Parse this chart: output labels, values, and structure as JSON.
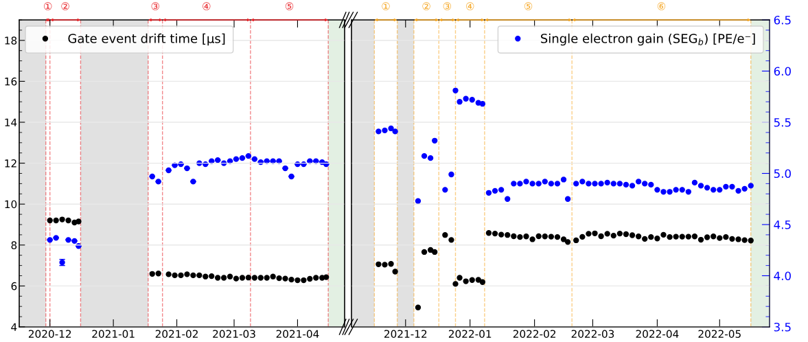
{
  "chart_data": [
    {
      "type": "scatter",
      "marker": "circle",
      "grid": "y",
      "legend": "top left",
      "tick_labels": "x,y",
      "xlim": [
        "2020-11-16",
        "2021-04-24"
      ],
      "xticks": [
        {
          "value": "2020-12-01",
          "label": "2020-12"
        },
        {
          "value": "2021-01-01",
          "label": "2021-01"
        },
        {
          "value": "2021-02-01",
          "label": "2021-02"
        },
        {
          "value": "2021-03-01",
          "label": "2021-03"
        },
        {
          "value": "2021-04-01",
          "label": "2021-04"
        }
      ],
      "ylim": [
        4,
        19
      ],
      "yticks": [
        4,
        6,
        8,
        10,
        12,
        14,
        16,
        18
      ],
      "y2lim": [
        3.5,
        6.5
      ],
      "x": [
        "2020-12-01",
        "2020-12-04",
        "2020-12-07",
        "2020-12-10",
        "2020-12-13",
        "2020-12-15",
        "2021-01-20",
        "2021-01-23",
        "2021-01-28",
        "2021-01-31",
        "2021-02-03",
        "2021-02-06",
        "2021-02-09",
        "2021-02-12",
        "2021-02-15",
        "2021-02-18",
        "2021-02-21",
        "2021-02-24",
        "2021-02-27",
        "2021-03-02",
        "2021-03-05",
        "2021-03-08",
        "2021-03-11",
        "2021-03-14",
        "2021-03-17",
        "2021-03-20",
        "2021-03-23",
        "2021-03-26",
        "2021-03-29",
        "2021-04-01",
        "2021-04-04",
        "2021-04-07",
        "2021-04-10",
        "2021-04-13",
        "2021-04-15"
      ],
      "series": [
        {
          "name": "Gate event drift time [μs]",
          "color": "#000000",
          "values": [
            9.2,
            9.2,
            9.25,
            9.2,
            9.1,
            9.15,
            6.59,
            6.61,
            6.57,
            6.52,
            6.52,
            6.57,
            6.52,
            6.52,
            6.46,
            6.48,
            6.4,
            6.4,
            6.46,
            6.36,
            6.4,
            6.41,
            6.4,
            6.4,
            6.4,
            6.46,
            6.38,
            6.36,
            6.31,
            6.28,
            6.28,
            6.35,
            6.4,
            6.4,
            6.43
          ]
        },
        {
          "color": "#0000ff",
          "axis": "y2",
          "values": [
            4.35,
            4.37,
            4.13,
            4.35,
            4.34,
            4.29,
            4.97,
            4.92,
            5.03,
            5.08,
            5.09,
            5.05,
            4.92,
            5.1,
            5.09,
            5.12,
            5.13,
            5.1,
            5.12,
            5.14,
            5.15,
            5.17,
            5.14,
            5.11,
            5.12,
            5.12,
            5.12,
            5.05,
            4.97,
            5.09,
            5.09,
            5.12,
            5.12,
            5.11,
            5.09
          ],
          "errors": [
            null,
            null,
            0.03,
            null,
            null,
            null,
            null,
            null,
            null,
            null,
            null,
            null,
            null,
            null,
            null,
            null,
            null,
            null,
            null,
            null,
            null,
            null,
            null,
            null,
            null,
            null,
            null,
            null,
            null,
            null,
            null,
            null,
            null,
            null,
            null
          ]
        }
      ],
      "bands": [
        {
          "axis": "x",
          "from": "2020-11-16",
          "to": "2020-11-29",
          "color": "#e1e1e1"
        },
        {
          "axis": "x",
          "from": "2020-12-16",
          "to": "2021-01-18",
          "color": "#e1e1e1"
        },
        {
          "axis": "x",
          "from": "2021-04-16",
          "to": "2021-04-24",
          "color": "#e3f0e3"
        }
      ],
      "ref_lines": [
        {
          "axis": "x",
          "value": "2020-11-29",
          "color": "#e8262b",
          "line_style": "dashed"
        },
        {
          "axis": "x",
          "value": "2020-12-01",
          "color": "#e8262b",
          "line_style": "dashed"
        },
        {
          "axis": "x",
          "value": "2020-12-16",
          "color": "#e8262b",
          "line_style": "dashed"
        },
        {
          "axis": "x",
          "value": "2021-01-18",
          "color": "#e8262b",
          "line_style": "dashed"
        },
        {
          "axis": "x",
          "value": "2021-01-25",
          "color": "#e8262b",
          "line_style": "dashed"
        },
        {
          "axis": "x",
          "value": "2021-03-09",
          "color": "#e8262b",
          "line_style": "dashed"
        },
        {
          "axis": "x",
          "value": "2021-04-16",
          "color": "#e8262b",
          "line_style": "dashed"
        }
      ],
      "annotations": [
        "①",
        "②",
        "③",
        "④",
        "⑤"
      ]
    },
    {
      "type": "scatter",
      "marker": "circle",
      "grid": "y",
      "legend": "top right",
      "tick_labels": "x,y2",
      "xlim": [
        "2021-11-05",
        "2022-05-25"
      ],
      "xticks": [
        {
          "value": "2021-12-01",
          "label": "2021-12"
        },
        {
          "value": "2022-01-01",
          "label": "2022-01"
        },
        {
          "value": "2022-02-01",
          "label": "2022-02"
        },
        {
          "value": "2022-03-01",
          "label": "2022-03"
        },
        {
          "value": "2022-04-01",
          "label": "2022-04"
        },
        {
          "value": "2022-05-01",
          "label": "2022-05"
        }
      ],
      "ylim": [
        4,
        19
      ],
      "y2lim": [
        3.5,
        6.5
      ],
      "y2ticks": [
        3.5,
        {
          "value": 4,
          "label": "4.0"
        },
        4.5,
        {
          "value": 5,
          "label": "5.0"
        },
        5.5,
        {
          "value": 6,
          "label": "6.0"
        },
        6.5
      ],
      "x": [
        "2021-11-18",
        "2021-11-21",
        "2021-11-24",
        "2021-11-26",
        "2021-12-07",
        "2021-12-10",
        "2021-12-13",
        "2021-12-15",
        "2021-12-20",
        "2021-12-23",
        "2021-12-25",
        "2021-12-27",
        "2021-12-30",
        "2022-01-02",
        "2022-01-05",
        "2022-01-07",
        "2022-01-10",
        "2022-01-13",
        "2022-01-16",
        "2022-01-19",
        "2022-01-22",
        "2022-01-25",
        "2022-01-28",
        "2022-01-31",
        "2022-02-03",
        "2022-02-06",
        "2022-02-09",
        "2022-02-12",
        "2022-02-15",
        "2022-02-17",
        "2022-02-21",
        "2022-02-24",
        "2022-02-27",
        "2022-03-02",
        "2022-03-05",
        "2022-03-08",
        "2022-03-11",
        "2022-03-14",
        "2022-03-17",
        "2022-03-20",
        "2022-03-23",
        "2022-03-26",
        "2022-03-29",
        "2022-04-01",
        "2022-04-04",
        "2022-04-07",
        "2022-04-10",
        "2022-04-13",
        "2022-04-16",
        "2022-04-19",
        "2022-04-22",
        "2022-04-25",
        "2022-04-28",
        "2022-05-01",
        "2022-05-04",
        "2022-05-07",
        "2022-05-10",
        "2022-05-13",
        "2022-05-16"
      ],
      "series": [
        {
          "color": "#000000",
          "values": [
            7.06,
            7.04,
            7.08,
            6.7,
            4.95,
            7.66,
            7.76,
            7.66,
            8.49,
            8.25,
            6.1,
            6.4,
            6.23,
            6.29,
            6.3,
            6.19,
            8.59,
            8.56,
            8.51,
            8.49,
            8.43,
            8.39,
            8.42,
            8.28,
            8.43,
            8.42,
            8.41,
            8.39,
            8.28,
            8.15,
            8.23,
            8.4,
            8.55,
            8.57,
            8.43,
            8.55,
            8.46,
            8.56,
            8.53,
            8.48,
            8.42,
            8.3,
            8.39,
            8.32,
            8.5,
            8.39,
            8.41,
            8.41,
            8.41,
            8.42,
            8.26,
            8.38,
            8.42,
            8.34,
            8.39,
            8.3,
            8.28,
            8.24,
            8.22
          ]
        },
        {
          "name": "Single electron gain (SEG$_{b}$) [PE/e⁻]",
          "color": "#0000ff",
          "axis": "y2",
          "values": [
            5.41,
            5.42,
            5.44,
            5.41,
            4.73,
            5.17,
            5.15,
            5.32,
            4.84,
            4.99,
            5.81,
            5.7,
            5.73,
            5.72,
            5.69,
            5.68,
            4.81,
            4.83,
            4.84,
            4.75,
            4.9,
            4.9,
            4.92,
            4.9,
            4.9,
            4.92,
            4.9,
            4.9,
            4.94,
            4.75,
            4.9,
            4.92,
            4.9,
            4.9,
            4.9,
            4.91,
            4.9,
            4.9,
            4.89,
            4.88,
            4.92,
            4.9,
            4.89,
            4.84,
            4.82,
            4.82,
            4.84,
            4.84,
            4.82,
            4.91,
            4.88,
            4.86,
            4.84,
            4.84,
            4.87,
            4.87,
            4.83,
            4.85,
            4.88
          ]
        }
      ],
      "bands": [
        {
          "axis": "x",
          "from": "2021-11-05",
          "to": "2021-11-16",
          "color": "#e1e1e1"
        },
        {
          "axis": "x",
          "from": "2021-11-27",
          "to": "2021-12-05",
          "color": "#e1e1e1"
        },
        {
          "axis": "x",
          "from": "2022-05-16",
          "to": "2022-05-25",
          "color": "#e3f0e3"
        }
      ],
      "ref_lines": [
        {
          "axis": "x",
          "value": "2021-11-16",
          "color": "#f5a623",
          "line_style": "dashed"
        },
        {
          "axis": "x",
          "value": "2021-11-27",
          "color": "#f5a623",
          "line_style": "dashed"
        },
        {
          "axis": "x",
          "value": "2021-12-05",
          "color": "#f5a623",
          "line_style": "dashed"
        },
        {
          "axis": "x",
          "value": "2021-12-17",
          "color": "#f5a623",
          "line_style": "dashed"
        },
        {
          "axis": "x",
          "value": "2021-12-25",
          "color": "#f5a623",
          "line_style": "dashed"
        },
        {
          "axis": "x",
          "value": "2022-01-08",
          "color": "#f5a623",
          "line_style": "dashed"
        },
        {
          "axis": "x",
          "value": "2022-02-19",
          "color": "#f5a623",
          "line_style": "dashed"
        },
        {
          "axis": "x",
          "value": "2022-05-16",
          "color": "#f5a623",
          "line_style": "dashed"
        }
      ],
      "annotations": [
        "①",
        "②",
        "③",
        "④",
        "⑤",
        "⑥"
      ]
    }
  ]
}
